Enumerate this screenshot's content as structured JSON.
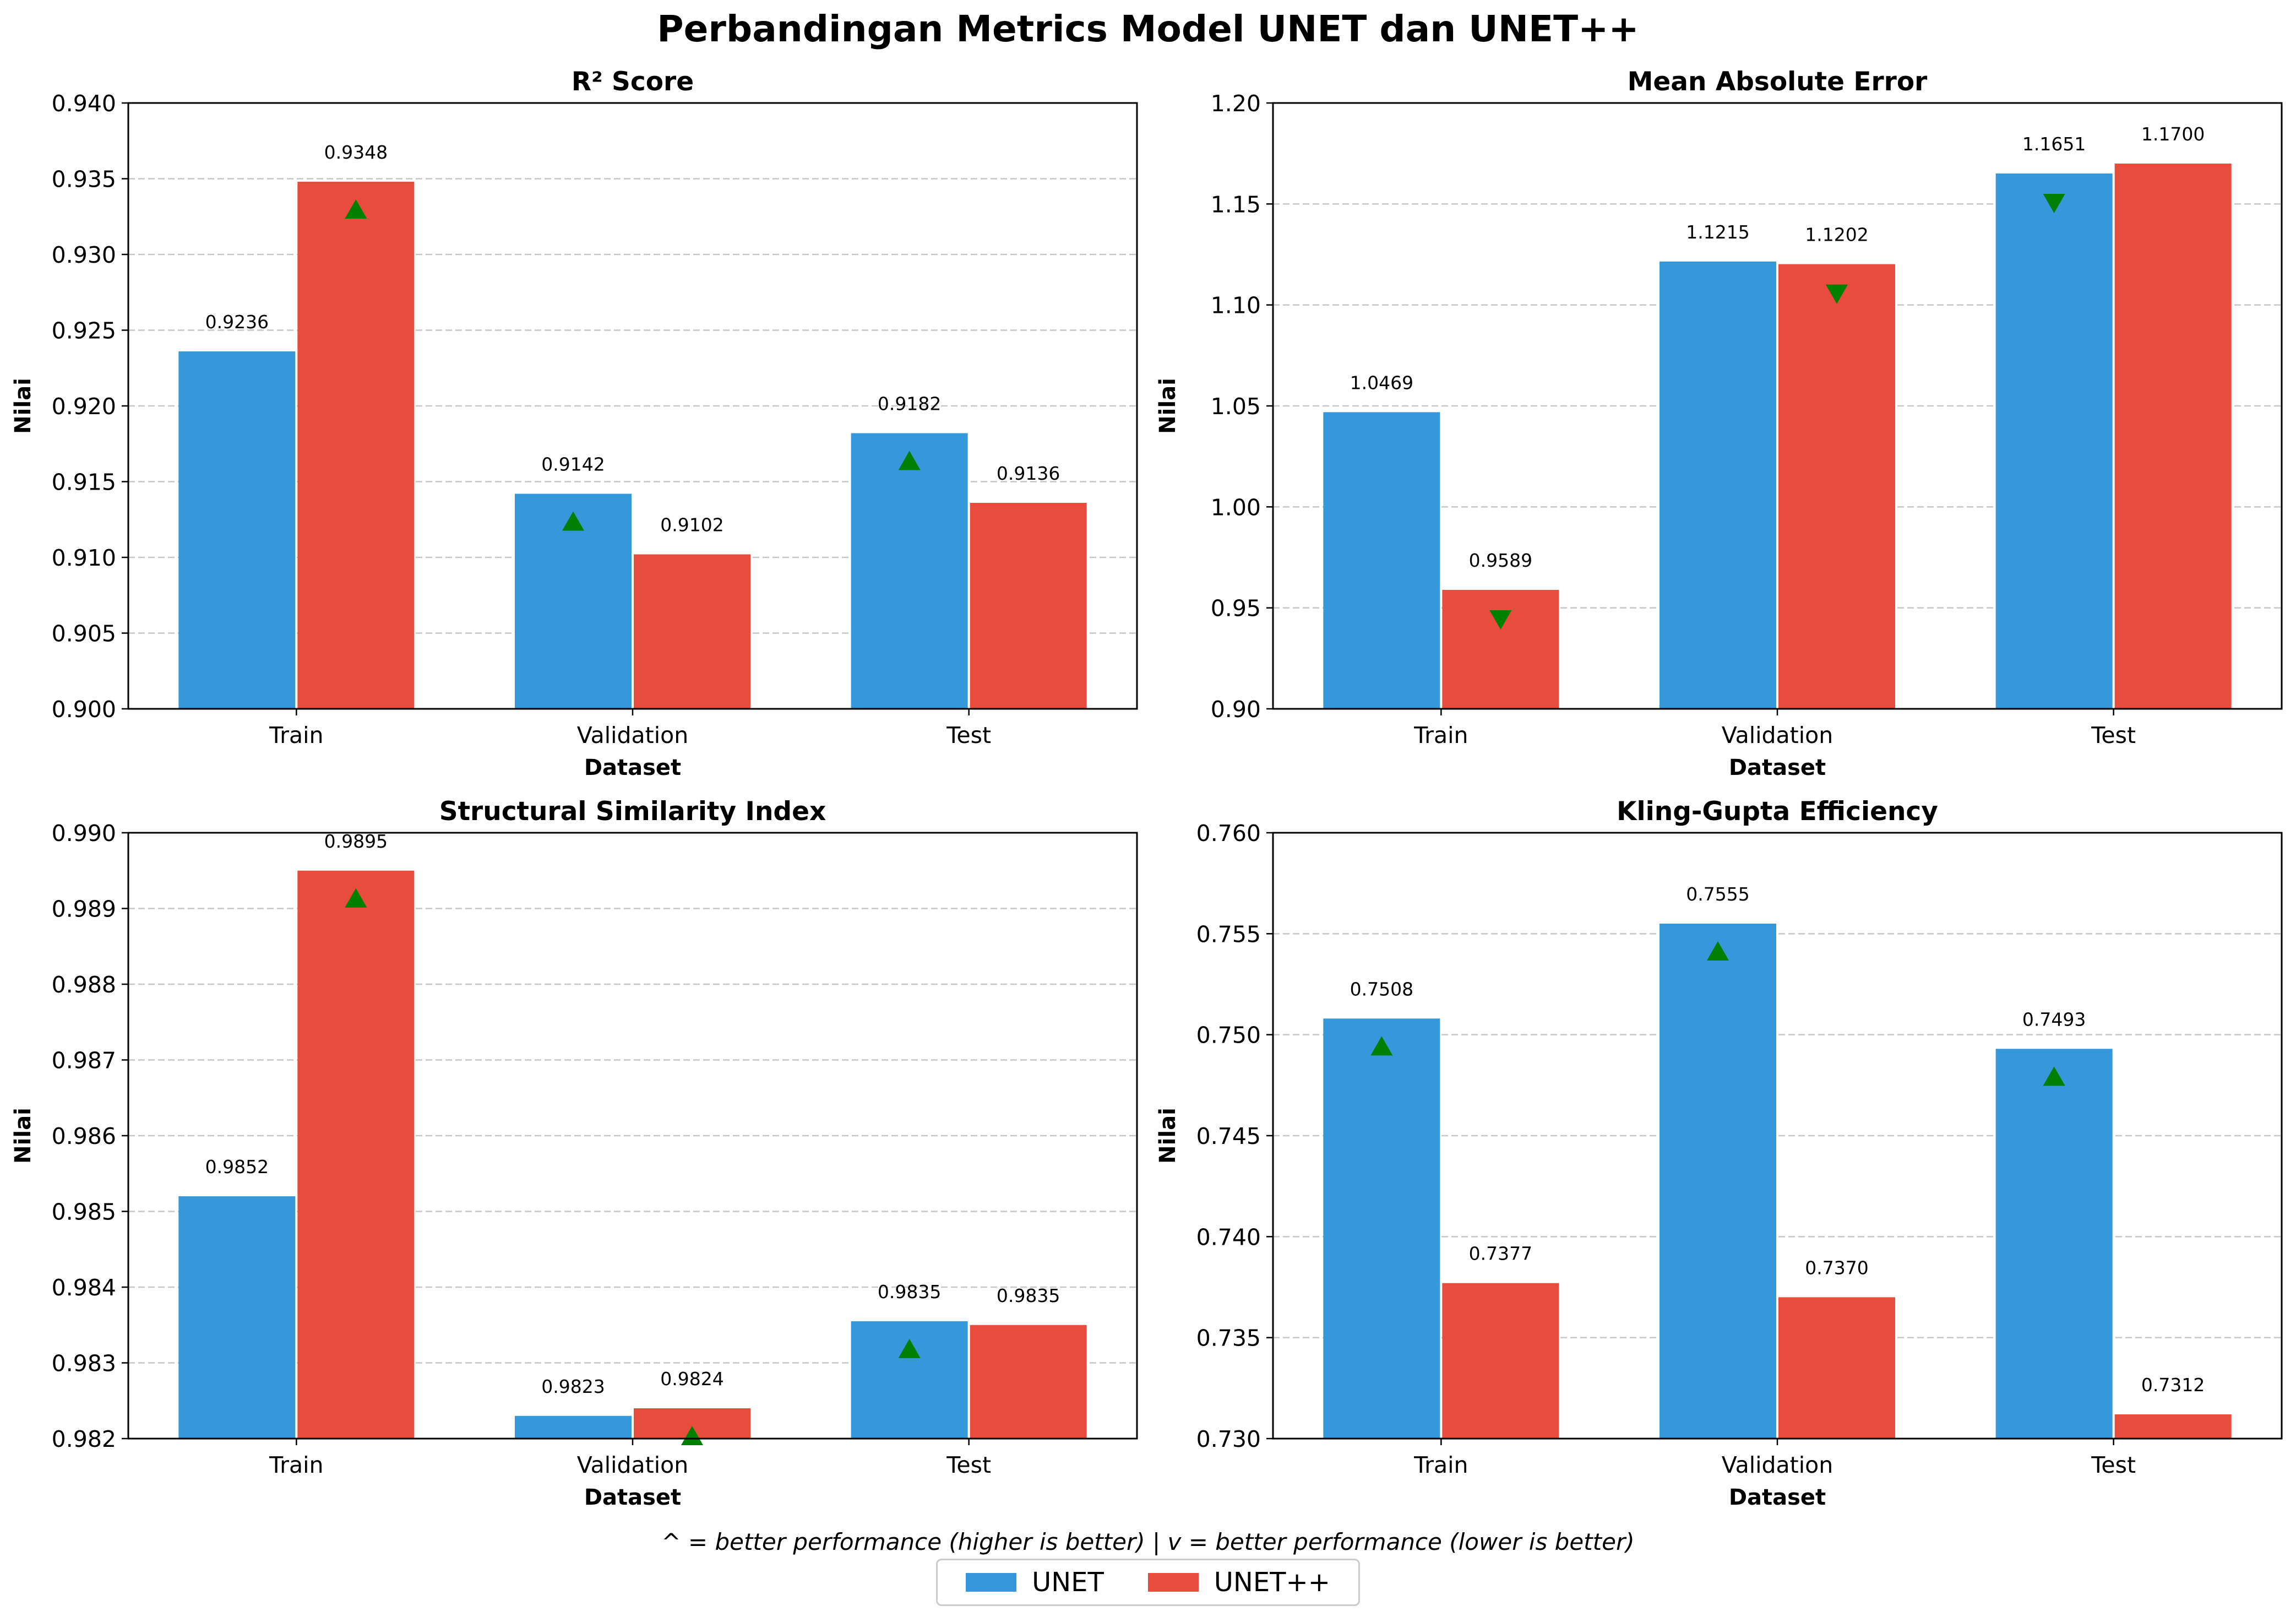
{
  "title": "Perbandingan Metrics Model UNET dan UNET++",
  "footnote": "^ = better performance (higher is better) | v = better performance (lower is better)",
  "colors": {
    "UNET": "#3498db",
    "UNET++": "#e74c3c",
    "marker": "#008000",
    "grid": "#b0b0b0"
  },
  "legend": [
    {
      "name": "UNET",
      "color": "#3498db"
    },
    {
      "name": "UNET++",
      "color": "#e74c3c"
    }
  ],
  "chart_data": [
    {
      "type": "bar",
      "title": "R² Score",
      "xlabel": "Dataset",
      "ylabel": "Nilai",
      "categories": [
        "Train",
        "Validation",
        "Test"
      ],
      "series": [
        {
          "name": "UNET",
          "values": [
            0.9236,
            0.9142,
            0.9182
          ],
          "labels": [
            "0.9236",
            "0.9142",
            "0.9182"
          ]
        },
        {
          "name": "UNET++",
          "values": [
            0.9348,
            0.9102,
            0.9136
          ],
          "labels": [
            "0.9348",
            "0.9102",
            "0.9136"
          ]
        }
      ],
      "ylim": [
        0.9,
        0.94
      ],
      "yticks": [
        "0.900",
        "0.905",
        "0.910",
        "0.915",
        "0.920",
        "0.925",
        "0.930",
        "0.935",
        "0.940"
      ],
      "better_markers": [
        {
          "category": "Train",
          "series": "UNET++",
          "direction": "up"
        },
        {
          "category": "Validation",
          "series": "UNET",
          "direction": "up"
        },
        {
          "category": "Test",
          "series": "UNET",
          "direction": "up"
        }
      ],
      "grid": "y-dashed"
    },
    {
      "type": "bar",
      "title": "Mean Absolute Error",
      "xlabel": "Dataset",
      "ylabel": "Nilai",
      "categories": [
        "Train",
        "Validation",
        "Test"
      ],
      "series": [
        {
          "name": "UNET",
          "values": [
            1.0469,
            1.1215,
            1.1651
          ],
          "labels": [
            "1.0469",
            "1.1215",
            "1.1651"
          ]
        },
        {
          "name": "UNET++",
          "values": [
            0.9589,
            1.1202,
            1.17
          ],
          "labels": [
            "0.9589",
            "1.1202",
            "1.1700"
          ]
        }
      ],
      "ylim": [
        0.9,
        1.2
      ],
      "yticks": [
        "0.90",
        "0.95",
        "1.00",
        "1.05",
        "1.10",
        "1.15",
        "1.20"
      ],
      "better_markers": [
        {
          "category": "Train",
          "series": "UNET++",
          "direction": "down"
        },
        {
          "category": "Validation",
          "series": "UNET++",
          "direction": "down"
        },
        {
          "category": "Test",
          "series": "UNET",
          "direction": "down"
        }
      ],
      "grid": "y-dashed"
    },
    {
      "type": "bar",
      "title": "Structural Similarity Index",
      "xlabel": "Dataset",
      "ylabel": "Nilai",
      "categories": [
        "Train",
        "Validation",
        "Test"
      ],
      "series": [
        {
          "name": "UNET",
          "values": [
            0.9852,
            0.9823,
            0.98355
          ],
          "labels": [
            "0.9852",
            "0.9823",
            "0.9835"
          ]
        },
        {
          "name": "UNET++",
          "values": [
            0.9895,
            0.9824,
            0.9835
          ],
          "labels": [
            "0.9895",
            "0.9824",
            "0.9835"
          ]
        }
      ],
      "ylim": [
        0.982,
        0.99
      ],
      "yticks": [
        "0.982",
        "0.983",
        "0.984",
        "0.985",
        "0.986",
        "0.987",
        "0.988",
        "0.989",
        "0.990"
      ],
      "better_markers": [
        {
          "category": "Train",
          "series": "UNET++",
          "direction": "up"
        },
        {
          "category": "Validation",
          "series": "UNET++",
          "direction": "up"
        },
        {
          "category": "Test",
          "series": "UNET",
          "direction": "up"
        }
      ],
      "grid": "y-dashed"
    },
    {
      "type": "bar",
      "title": "Kling-Gupta Efficiency",
      "xlabel": "Dataset",
      "ylabel": "Nilai",
      "categories": [
        "Train",
        "Validation",
        "Test"
      ],
      "series": [
        {
          "name": "UNET",
          "values": [
            0.7508,
            0.7555,
            0.7493
          ],
          "labels": [
            "0.7508",
            "0.7555",
            "0.7493"
          ]
        },
        {
          "name": "UNET++",
          "values": [
            0.7377,
            0.737,
            0.7312
          ],
          "labels": [
            "0.7377",
            "0.7370",
            "0.7312"
          ]
        }
      ],
      "ylim": [
        0.73,
        0.76
      ],
      "yticks": [
        "0.730",
        "0.735",
        "0.740",
        "0.745",
        "0.750",
        "0.755",
        "0.760"
      ],
      "better_markers": [
        {
          "category": "Train",
          "series": "UNET",
          "direction": "up"
        },
        {
          "category": "Validation",
          "series": "UNET",
          "direction": "up"
        },
        {
          "category": "Test",
          "series": "UNET",
          "direction": "up"
        }
      ],
      "grid": "y-dashed"
    }
  ]
}
